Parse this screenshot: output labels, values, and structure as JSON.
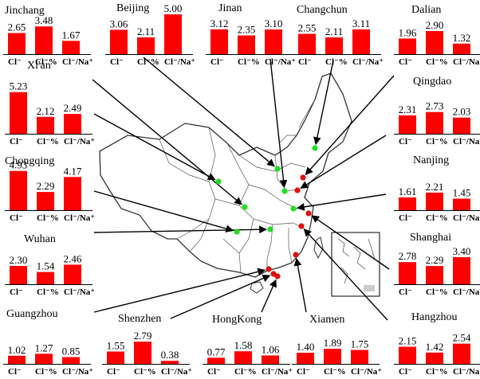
{
  "chart_data": {
    "type": "bar",
    "categories": [
      "Cl⁻",
      "Cl⁻%",
      "Cl⁻/Na⁺"
    ],
    "bar_color": "#ff0000",
    "marker_colors": {
      "green": "#22dd22",
      "red": "#dd1111"
    },
    "panels": [
      {
        "name": "Jinchang",
        "values": [
          2.65,
          3.48,
          1.67
        ],
        "labels": [
          "2.65",
          "3.48",
          "1.67"
        ]
      },
      {
        "name": "Beijing",
        "values": [
          3.06,
          2.11,
          5.0
        ],
        "labels": [
          "3.06",
          "2.11",
          "5.00"
        ]
      },
      {
        "name": "Jinan",
        "values": [
          3.12,
          2.35,
          3.1
        ],
        "labels": [
          "3.12",
          "2.35",
          "3.10"
        ]
      },
      {
        "name": "Changchun",
        "values": [
          2.55,
          2.11,
          3.11
        ],
        "labels": [
          "2.55",
          "2.11",
          "3.11"
        ]
      },
      {
        "name": "Dalian",
        "values": [
          1.96,
          2.9,
          1.32
        ],
        "labels": [
          "1.96",
          "2.90",
          "1.32"
        ]
      },
      {
        "name": "Xi'an",
        "values": [
          5.23,
          2.12,
          2.49
        ],
        "labels": [
          "5.23",
          "2.12",
          "2.49"
        ]
      },
      {
        "name": "Qingdao",
        "values": [
          2.31,
          2.73,
          2.03
        ],
        "labels": [
          "2.31",
          "2.73",
          "2.03"
        ]
      },
      {
        "name": "Chongqing",
        "values": [
          4.93,
          2.29,
          4.17
        ],
        "labels": [
          "4.93",
          "2.29",
          "4.17"
        ]
      },
      {
        "name": "Nanjing",
        "values": [
          1.61,
          2.21,
          1.45
        ],
        "labels": [
          "1.61",
          "2.21",
          "1.45"
        ]
      },
      {
        "name": "Wuhan",
        "values": [
          2.3,
          1.54,
          2.46
        ],
        "labels": [
          "2.30",
          "1.54",
          "2.46"
        ]
      },
      {
        "name": "Shanghai",
        "values": [
          2.78,
          2.29,
          3.4
        ],
        "labels": [
          "2.78",
          "2.29",
          "3.40"
        ]
      },
      {
        "name": "Guangzhou",
        "values": [
          1.02,
          1.27,
          0.85
        ],
        "labels": [
          "1.02",
          "1.27",
          "0.85"
        ]
      },
      {
        "name": "Shenzhen",
        "values": [
          1.55,
          2.79,
          0.38
        ],
        "labels": [
          "1.55",
          "2.79",
          "0.38"
        ]
      },
      {
        "name": "HongKong",
        "values": [
          0.77,
          1.58,
          1.06
        ],
        "labels": [
          "0.77",
          "1.58",
          "1.06"
        ]
      },
      {
        "name": "Xiamen",
        "values": [
          1.4,
          1.89,
          1.75
        ],
        "labels": [
          "1.40",
          "1.89",
          "1.75"
        ]
      },
      {
        "name": "Hangzhou",
        "values": [
          2.15,
          1.42,
          2.54
        ],
        "labels": [
          "2.15",
          "1.42",
          "2.54"
        ]
      }
    ],
    "map_markers": [
      {
        "city": "Jinchang",
        "color": "green"
      },
      {
        "city": "Beijing",
        "color": "green"
      },
      {
        "city": "Jinan",
        "color": "green"
      },
      {
        "city": "Changchun",
        "color": "green"
      },
      {
        "city": "Dalian",
        "color": "red"
      },
      {
        "city": "Xi'an",
        "color": "green"
      },
      {
        "city": "Qingdao",
        "color": "red"
      },
      {
        "city": "Chongqing",
        "color": "green"
      },
      {
        "city": "Nanjing",
        "color": "green"
      },
      {
        "city": "Wuhan",
        "color": "green"
      },
      {
        "city": "Shanghai",
        "color": "red"
      },
      {
        "city": "Guangzhou",
        "color": "red"
      },
      {
        "city": "Shenzhen",
        "color": "red"
      },
      {
        "city": "HongKong",
        "color": "red"
      },
      {
        "city": "Xiamen",
        "color": "red"
      },
      {
        "city": "Hangzhou",
        "color": "red"
      }
    ]
  }
}
